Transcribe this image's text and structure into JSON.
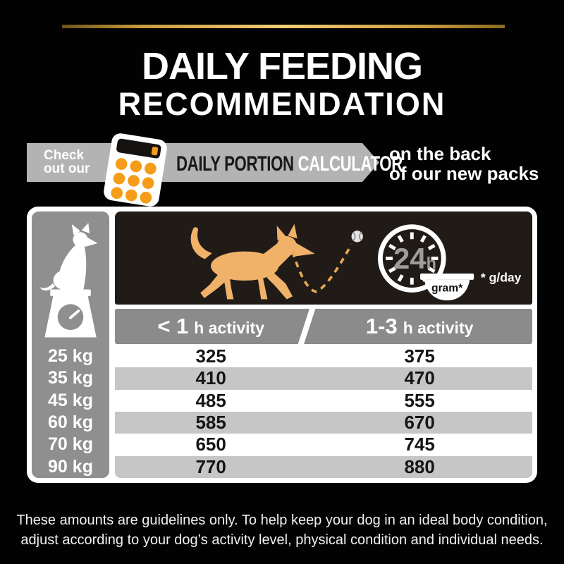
{
  "page": {
    "title_line1": "DAILY FEEDING",
    "title_line2": "RECOMMENDATION"
  },
  "banner": {
    "check_line1": "Check",
    "check_line2": "out our",
    "calculator_icon": "calculator-icon",
    "label_black": "DAILY PORTION",
    "label_white": "CALCULATOR",
    "right_line1": "on the back",
    "right_line2": "of our new packs"
  },
  "table": {
    "weight_icon": "dog-on-scale-icon",
    "dog_icon": "running-dog-icon",
    "ball_icon": "bouncing-ball-icon",
    "clock_icon": "24h-clock-icon",
    "clock_label_num": "24",
    "clock_label_unit": "h",
    "bowl_label": "gram*",
    "unit_note": "* g/day",
    "columns": [
      {
        "num": "< 1",
        "rest": "h activity"
      },
      {
        "num": "1-3",
        "rest": "h activity"
      }
    ],
    "rows": [
      {
        "weight": "25 kg",
        "v1": "325",
        "v2": "375"
      },
      {
        "weight": "35 kg",
        "v1": "410",
        "v2": "470"
      },
      {
        "weight": "45 kg",
        "v1": "485",
        "v2": "555"
      },
      {
        "weight": "60 kg",
        "v1": "585",
        "v2": "670"
      },
      {
        "weight": "70 kg",
        "v1": "650",
        "v2": "745"
      },
      {
        "weight": "90 kg",
        "v1": "770",
        "v2": "880"
      }
    ]
  },
  "footer": {
    "line1": "These amounts are guidelines only. To help keep your dog in an ideal body condition,",
    "line2": "adjust according to your dog’s activity level, physical condition and individual needs."
  },
  "colors": {
    "background": "#020202",
    "gold": "#d8ab4e",
    "banner_gray": "#b3b3b3",
    "header_gray": "#8b8b8b",
    "left_col_gray": "#8f8f8f",
    "alt_row_gray": "#c6c6c6",
    "panel_black": "#211b18",
    "dog_tan": "#f0b169",
    "button_orange": "#f59d18",
    "white": "#ffffff"
  },
  "chart_data": {
    "type": "table",
    "title": "DAILY FEEDING RECOMMENDATION",
    "unit": "g/day",
    "columns": [
      "Weight",
      "< 1 h activity",
      "1-3 h activity"
    ],
    "rows": [
      [
        "25 kg",
        325,
        375
      ],
      [
        "35 kg",
        410,
        470
      ],
      [
        "45 kg",
        485,
        555
      ],
      [
        "60 kg",
        585,
        670
      ],
      [
        "70 kg",
        650,
        745
      ],
      [
        "90 kg",
        770,
        880
      ]
    ]
  }
}
